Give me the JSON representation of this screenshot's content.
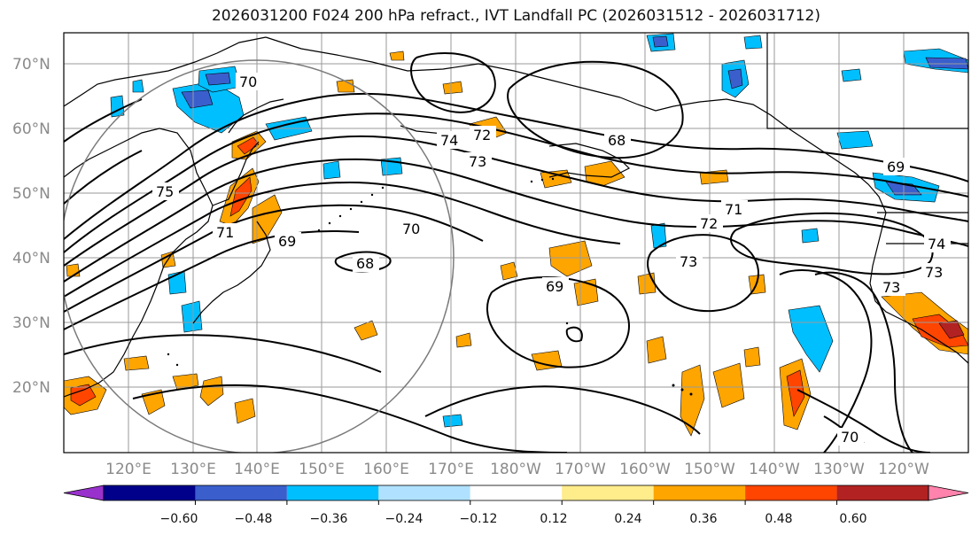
{
  "title": "2026031200 F024 200 hPa refract., IVT Landfall PC (2026031512 - 2026031712)",
  "lat_labels": [
    "70°N",
    "60°N",
    "50°N",
    "40°N",
    "30°N",
    "20°N"
  ],
  "lon_labels": [
    "120°E",
    "130°E",
    "140°E",
    "150°E",
    "160°E",
    "170°E",
    "180°W",
    "170°W",
    "160°W",
    "150°W",
    "140°W",
    "130°W",
    "120°W"
  ],
  "colorbar": {
    "colors": [
      "#9932cc",
      "#00008b",
      "#3a5fcd",
      "#00bfff",
      "#b0e2ff",
      "#ffffff",
      "#ffec8b",
      "#ffa500",
      "#ff4500",
      "#b22222",
      "#ff83ac"
    ],
    "labels": [
      "−0.60",
      "−0.48",
      "−0.36",
      "−0.24",
      "−0.12",
      "0.12",
      "0.24",
      "0.36",
      "0.48",
      "0.60"
    ]
  },
  "contour_labels": [
    "70",
    "74",
    "73",
    "72",
    "75",
    "71",
    "68",
    "69",
    "70",
    "68",
    "72",
    "71",
    "73",
    "69",
    "69",
    "73",
    "74",
    "73",
    "70"
  ]
}
